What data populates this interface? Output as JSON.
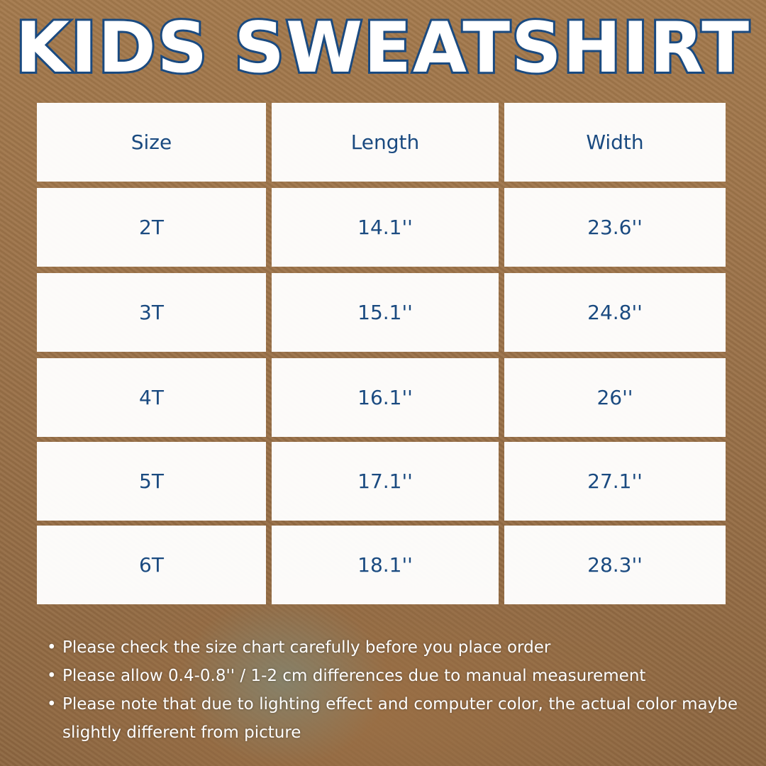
{
  "title": "KIDS SWEATSHIRT",
  "colors": {
    "text": "#1a4a80",
    "cell": "#ffffff",
    "background": "#9b7249"
  },
  "table": {
    "headers": [
      "Size",
      "Length",
      "Width"
    ],
    "rows": [
      [
        "2T",
        "14.1''",
        "23.6''"
      ],
      [
        "3T",
        "15.1''",
        "24.8''"
      ],
      [
        "4T",
        "16.1''",
        "26''"
      ],
      [
        "5T",
        "17.1''",
        "27.1''"
      ],
      [
        "6T",
        "18.1''",
        "28.3''"
      ]
    ]
  },
  "notes": [
    "Please check the size chart carefully before you place order",
    "Please allow 0.4-0.8'' / 1-2 cm differences due to manual measurement",
    "Please note that due to lighting effect and computer color, the actual color maybe slightly different from picture"
  ]
}
